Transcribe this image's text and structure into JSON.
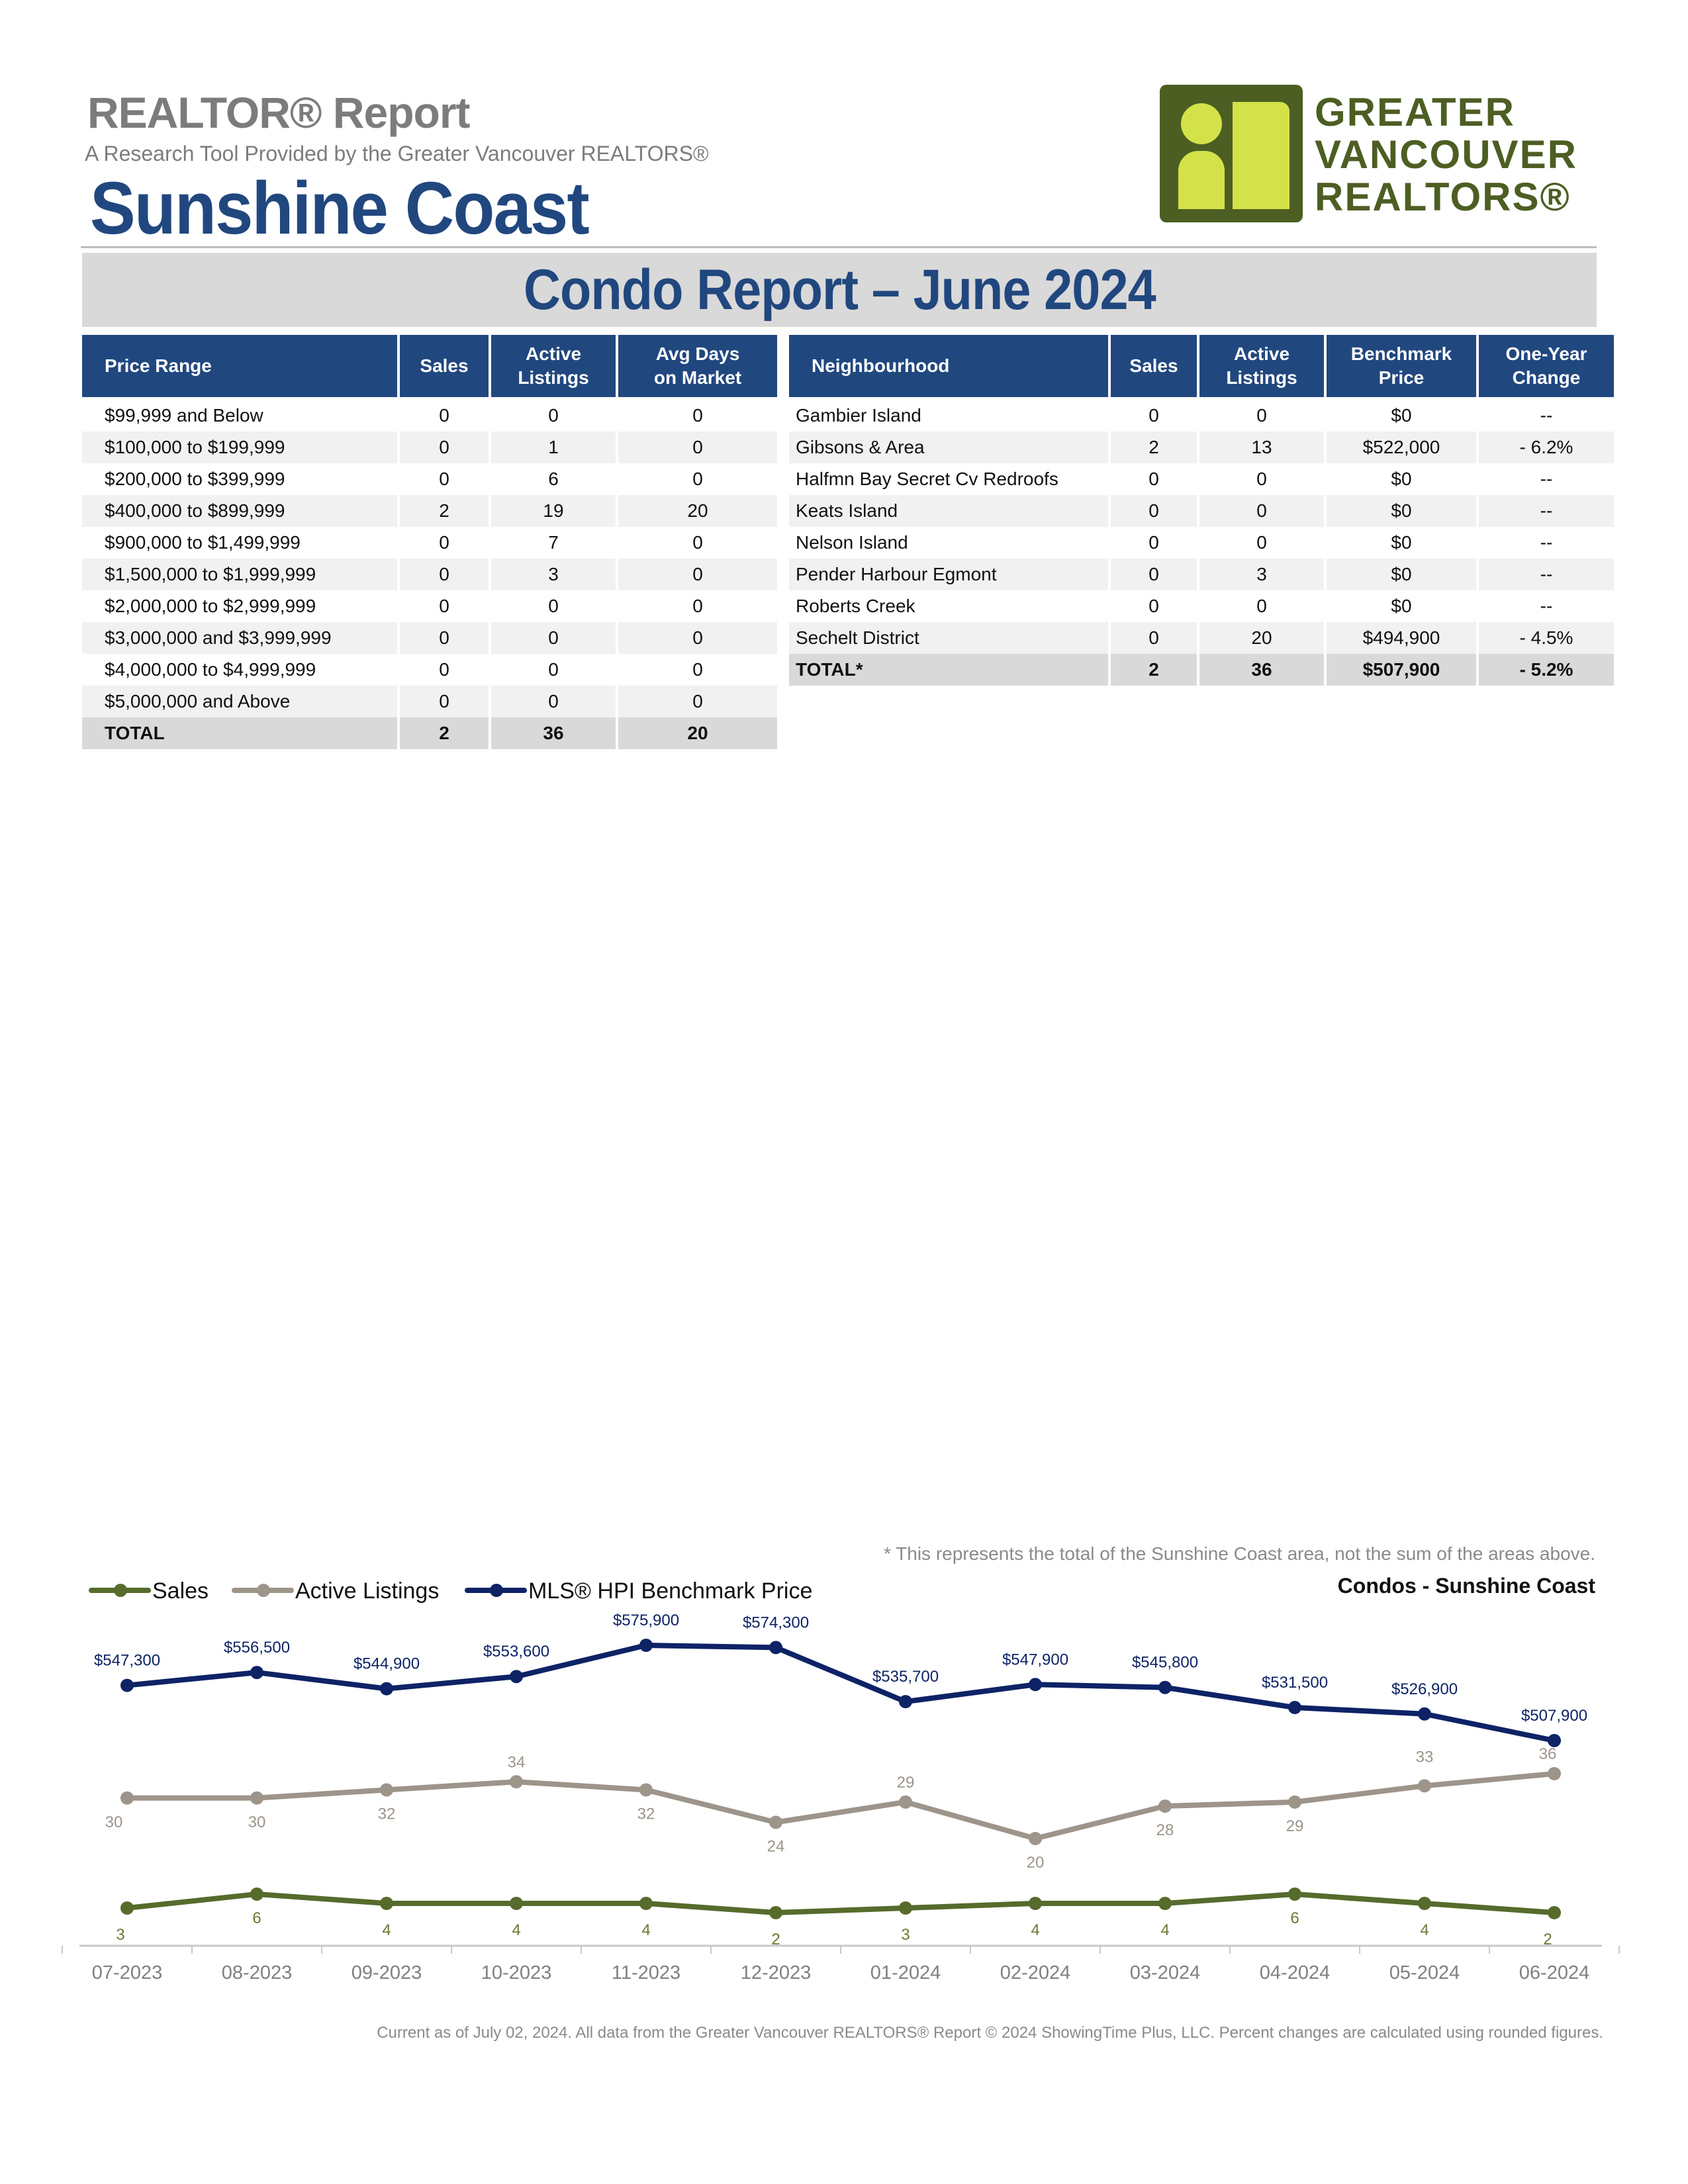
{
  "header": {
    "report_title": "REALTOR® Report",
    "subtitle": "A Research Tool Provided by the Greater Vancouver REALTORS®",
    "area": "Sunshine Coast",
    "banner": "Condo Report – June 2024"
  },
  "logo": {
    "lines": [
      "GREATER",
      "VANCOUVER",
      "REALTORS®"
    ],
    "icon": "realtors-logo-icon"
  },
  "price_table": {
    "headers": [
      "Price Range",
      "Sales",
      "Active\nListings",
      "Avg Days\non Market"
    ],
    "rows": [
      [
        "$99,999 and Below",
        "0",
        "0",
        "0"
      ],
      [
        "$100,000 to $199,999",
        "0",
        "1",
        "0"
      ],
      [
        "$200,000 to $399,999",
        "0",
        "6",
        "0"
      ],
      [
        "$400,000 to $899,999",
        "2",
        "19",
        "20"
      ],
      [
        "$900,000 to $1,499,999",
        "0",
        "7",
        "0"
      ],
      [
        "$1,500,000 to $1,999,999",
        "0",
        "3",
        "0"
      ],
      [
        "$2,000,000 to $2,999,999",
        "0",
        "0",
        "0"
      ],
      [
        "$3,000,000 and $3,999,999",
        "0",
        "0",
        "0"
      ],
      [
        "$4,000,000 to $4,999,999",
        "0",
        "0",
        "0"
      ],
      [
        "$5,000,000 and Above",
        "0",
        "0",
        "0"
      ]
    ],
    "total": [
      "TOTAL",
      "2",
      "36",
      "20"
    ]
  },
  "neighbourhood_table": {
    "headers": [
      "Neighbourhood",
      "Sales",
      "Active\nListings",
      "Benchmark\nPrice",
      "One-Year\nChange"
    ],
    "rows": [
      [
        "Gambier Island",
        "0",
        "0",
        "$0",
        "--"
      ],
      [
        "Gibsons & Area",
        "2",
        "13",
        "$522,000",
        "- 6.2%"
      ],
      [
        "Halfmn Bay Secret Cv Redroofs",
        "0",
        "0",
        "$0",
        "--"
      ],
      [
        "Keats Island",
        "0",
        "0",
        "$0",
        "--"
      ],
      [
        "Nelson Island",
        "0",
        "0",
        "$0",
        "--"
      ],
      [
        "Pender Harbour Egmont",
        "0",
        "3",
        "$0",
        "--"
      ],
      [
        "Roberts Creek",
        "0",
        "0",
        "$0",
        "--"
      ],
      [
        "Sechelt District",
        "0",
        "20",
        "$494,900",
        "- 4.5%"
      ]
    ],
    "total": [
      "TOTAL*",
      "2",
      "36",
      "$507,900",
      "- 5.2%"
    ]
  },
  "note": "* This represents the total of the Sunshine Coast area, not the sum of the areas above.",
  "chart_data": {
    "type": "line",
    "title": "Condos - Sunshine Coast",
    "categories": [
      "07-2023",
      "08-2023",
      "09-2023",
      "10-2023",
      "11-2023",
      "12-2023",
      "01-2024",
      "02-2024",
      "03-2024",
      "04-2024",
      "05-2024",
      "06-2024"
    ],
    "series": [
      {
        "name": "Sales",
        "color": "#566b2c",
        "values": [
          3,
          6,
          4,
          4,
          4,
          2,
          3,
          4,
          4,
          6,
          4,
          2
        ],
        "labels": [
          "3",
          "6",
          "4",
          "4",
          "4",
          "2",
          "3",
          "4",
          "4",
          "6",
          "4",
          "2"
        ]
      },
      {
        "name": "Active Listings",
        "color": "#9d948a",
        "values": [
          30,
          30,
          32,
          34,
          32,
          24,
          29,
          20,
          28,
          29,
          33,
          36
        ],
        "labels": [
          "30",
          "30",
          "32",
          "34",
          "32",
          "24",
          "29",
          "20",
          "28",
          "29",
          "33",
          "36"
        ]
      },
      {
        "name": "MLS® HPI Benchmark Price",
        "color": "#0d2366",
        "values": [
          547300,
          556500,
          544900,
          553600,
          575900,
          574300,
          535700,
          547900,
          545800,
          531500,
          526900,
          507900
        ],
        "labels": [
          "$547,300",
          "$556,500",
          "$544,900",
          "$553,600",
          "$575,900",
          "$574,300",
          "$535,700",
          "$547,900",
          "$545,800",
          "$531,500",
          "$526,900",
          "$507,900"
        ]
      }
    ],
    "legend": "top-left",
    "grid": false
  },
  "footer": "Current as of July 02, 2024. All data from the Greater Vancouver REALTORS® Report © 2024 ShowingTime Plus, LLC. Percent changes are calculated using rounded figures."
}
